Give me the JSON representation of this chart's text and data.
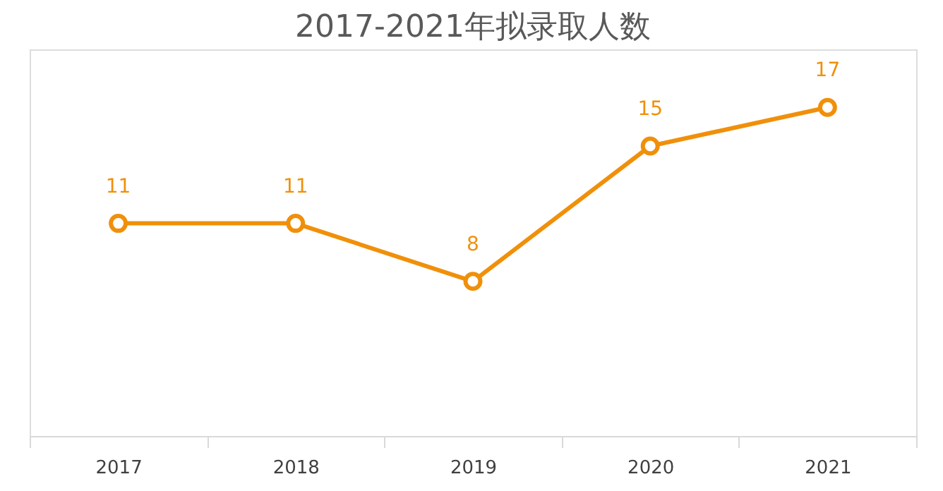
{
  "chart_data": {
    "type": "line",
    "title": "2017-2021年拟录取人数",
    "categories": [
      "2017",
      "2018",
      "2019",
      "2020",
      "2021"
    ],
    "series": [
      {
        "color": "#f0900a",
        "values": [
          11,
          11,
          8,
          15,
          17
        ]
      }
    ],
    "ylim": [
      0,
      20
    ],
    "tick_labels": "x",
    "data_labels": true,
    "marker": "circle",
    "grid": false
  }
}
